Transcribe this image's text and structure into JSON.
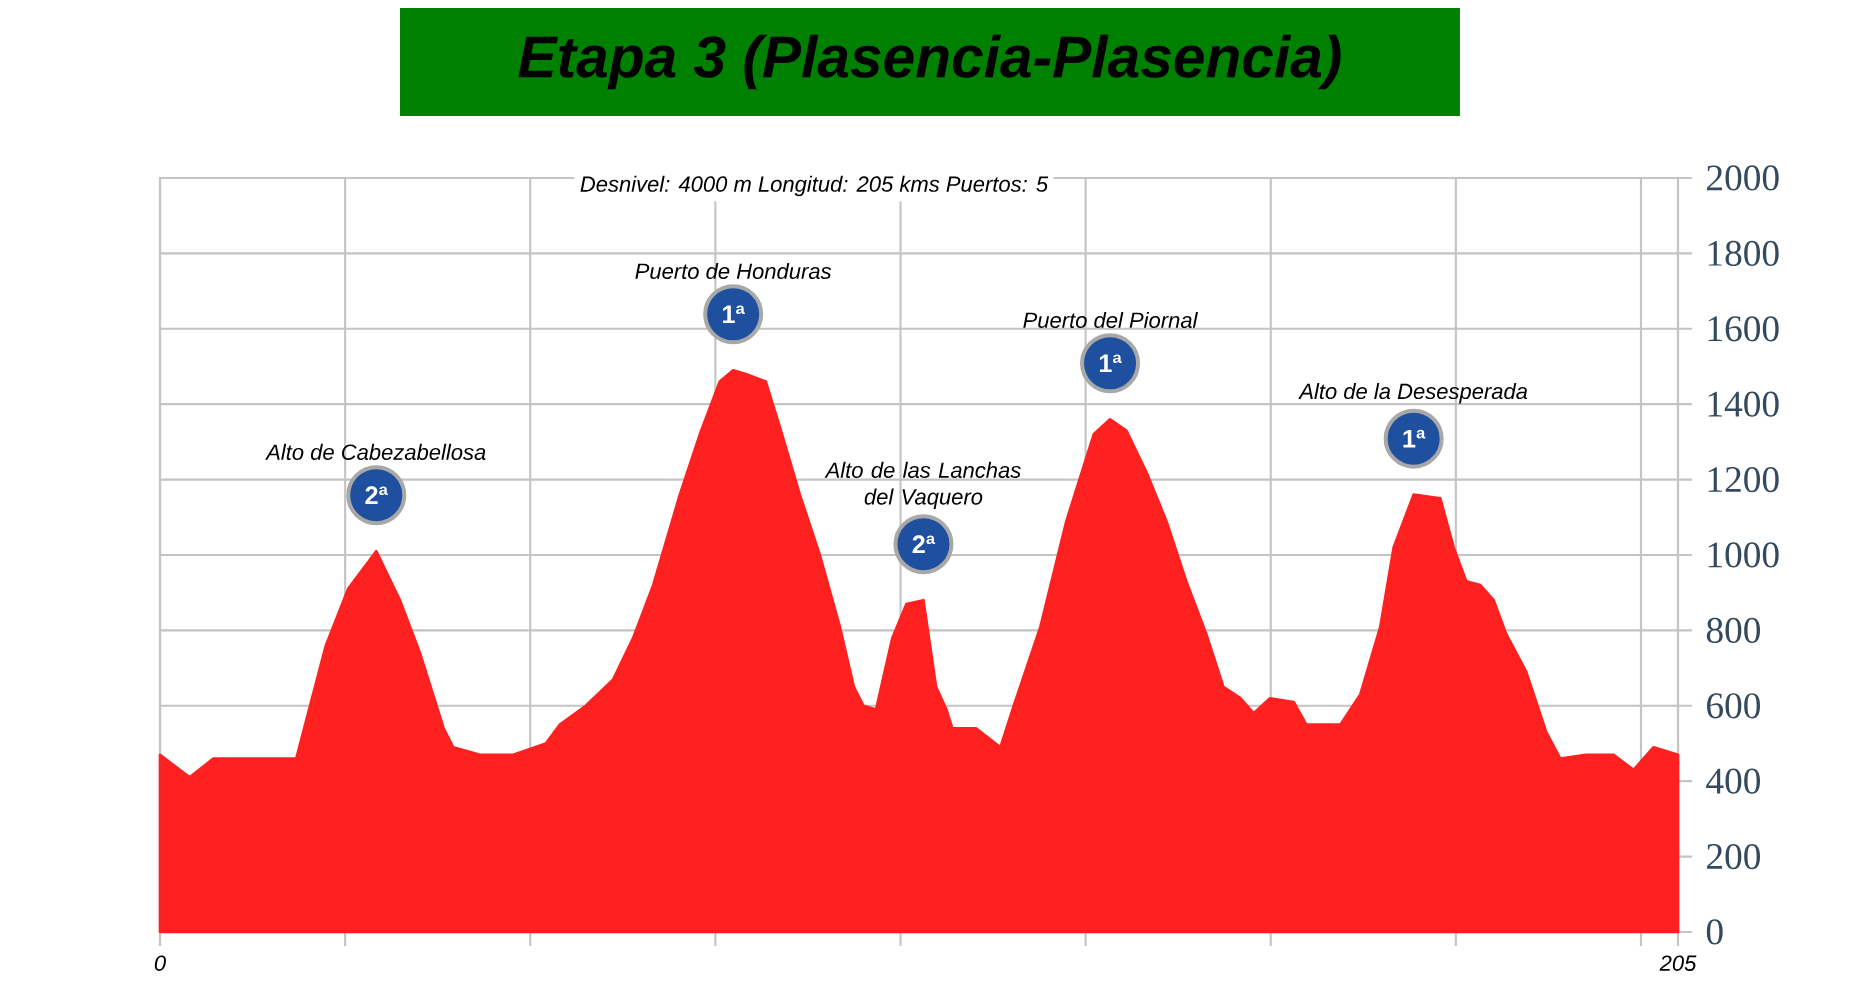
{
  "chart_data": {
    "type": "area",
    "title": "Etapa 3 (Plasencia-Plasencia)",
    "annotations": [
      "Desnivel: 4000 m Longitud: 205 kms Puertos: 5",
      "Alto de Cabezabellosa",
      {
        "text": "2ª",
        "x": 29.2,
        "y": 1010
      },
      "Puerto de Honduras",
      {
        "text": "1ª",
        "x": 77.4,
        "y": 1490
      },
      "Alto de las Lanchas del Vaquero",
      {
        "text": "2ª",
        "x": 103.1,
        "y": 880
      },
      "Puerto del Piornal",
      {
        "text": "1ª",
        "x": 128.3,
        "y": 1360
      },
      "Alto de la Desesperada",
      {
        "text": "1ª",
        "x": 169.3,
        "y": 1160
      }
    ],
    "x": [
      0,
      4,
      7.2,
      11.6,
      18.4,
      22.4,
      25.4,
      29.2,
      32.4,
      35.1,
      38.3,
      39.6,
      43.2,
      47.7,
      52.1,
      54,
      57.5,
      61.2,
      63.9,
      66.6,
      70.2,
      72.9,
      75.6,
      77.4,
      79.1,
      81.8,
      83.7,
      86.4,
      89.1,
      91.8,
      93.7,
      95,
      96.7,
      98.9,
      100.8,
      103.1,
      104.8,
      106.2,
      107,
      110.2,
      113.5,
      115.3,
      118.9,
      122.4,
      126.1,
      128.3,
      130.5,
      133.2,
      135.9,
      138.6,
      141.3,
      143.6,
      145.9,
      147.7,
      149.9,
      153.1,
      154.8,
      159.4,
      162.1,
      164.8,
      166.6,
      169.3,
      172.9,
      174.7,
      176.4,
      178.3,
      180.1,
      181.8,
      184.5,
      187.2,
      189.1,
      192.6,
      196.3,
      199,
      201.7,
      205
    ],
    "values": [
      470,
      410,
      460,
      460,
      460,
      760,
      910,
      1010,
      880,
      740,
      540,
      490,
      470,
      470,
      500,
      550,
      600,
      670,
      780,
      920,
      1160,
      1320,
      1460,
      1490,
      1480,
      1460,
      1340,
      1160,
      1000,
      810,
      650,
      600,
      590,
      780,
      870,
      880,
      650,
      590,
      540,
      540,
      490,
      600,
      810,
      1090,
      1320,
      1360,
      1330,
      1220,
      1090,
      930,
      790,
      650,
      620,
      580,
      620,
      610,
      550,
      550,
      630,
      810,
      1020,
      1160,
      1150,
      1020,
      930,
      920,
      880,
      790,
      690,
      530,
      460,
      470,
      470,
      430,
      490,
      470
    ],
    "color": "#ff2020",
    "xlim": [
      0,
      205
    ],
    "ylim": [
      0,
      2000
    ],
    "xticks": [
      0,
      {
        "value": 25,
        "label": null
      },
      {
        "value": 50,
        "label": null
      },
      {
        "value": 75,
        "label": null
      },
      {
        "value": 100,
        "label": null
      },
      {
        "value": 125,
        "label": null
      },
      {
        "value": 150,
        "label": null
      },
      {
        "value": 175,
        "label": null
      },
      {
        "value": 200,
        "label": null
      },
      205
    ],
    "yticks": [
      0,
      200,
      400,
      600,
      800,
      1000,
      1200,
      1400,
      1600,
      1800,
      2000
    ],
    "grid": true
  }
}
